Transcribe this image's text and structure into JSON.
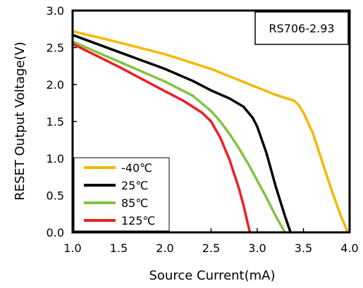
{
  "chart_data": {
    "type": "line",
    "title": "",
    "annotation": "RS706-2.93",
    "xlabel": "Source Current(mA)",
    "ylabel": "RESET Output Voltage(V)",
    "xlim": [
      1.0,
      4.0
    ],
    "ylim": [
      0.0,
      3.0
    ],
    "xticks": [
      "1.0",
      "1.5",
      "2.0",
      "2.5",
      "3.0",
      "3.5",
      "4.0"
    ],
    "yticks": [
      "0.0",
      "0.5",
      "1.0",
      "1.5",
      "2.0",
      "2.5",
      "3.0"
    ],
    "grid": false,
    "legend_position": "bottom-left",
    "series": [
      {
        "name": "-40℃",
        "color": "#F5B800",
        "x": [
          1.0,
          1.5,
          2.0,
          2.5,
          3.0,
          3.2,
          3.3,
          3.4,
          3.45,
          3.5,
          3.6,
          3.7,
          3.8,
          3.9,
          3.98
        ],
        "y": [
          2.72,
          2.57,
          2.41,
          2.21,
          1.96,
          1.86,
          1.82,
          1.78,
          1.72,
          1.62,
          1.35,
          0.97,
          0.59,
          0.24,
          0.0
        ]
      },
      {
        "name": "25℃",
        "color": "#000000",
        "x": [
          1.0,
          1.5,
          2.0,
          2.3,
          2.5,
          2.7,
          2.85,
          2.95,
          3.0,
          3.1,
          3.2,
          3.3,
          3.36
        ],
        "y": [
          2.67,
          2.44,
          2.21,
          2.05,
          1.92,
          1.81,
          1.7,
          1.55,
          1.43,
          1.07,
          0.62,
          0.22,
          0.0
        ]
      },
      {
        "name": "85℃",
        "color": "#82C341",
        "x": [
          1.0,
          1.5,
          2.0,
          2.3,
          2.5,
          2.6,
          2.7,
          2.8,
          2.9,
          3.0,
          3.1,
          3.2,
          3.3
        ],
        "y": [
          2.58,
          2.31,
          2.04,
          1.85,
          1.64,
          1.5,
          1.33,
          1.14,
          0.93,
          0.7,
          0.47,
          0.22,
          0.0
        ]
      },
      {
        "name": "125℃",
        "color": "#EE1D23",
        "x": [
          1.0,
          1.5,
          2.0,
          2.2,
          2.4,
          2.5,
          2.6,
          2.7,
          2.8,
          2.85,
          2.92
        ],
        "y": [
          2.55,
          2.24,
          1.91,
          1.78,
          1.62,
          1.5,
          1.28,
          0.98,
          0.6,
          0.37,
          0.0
        ]
      }
    ]
  }
}
